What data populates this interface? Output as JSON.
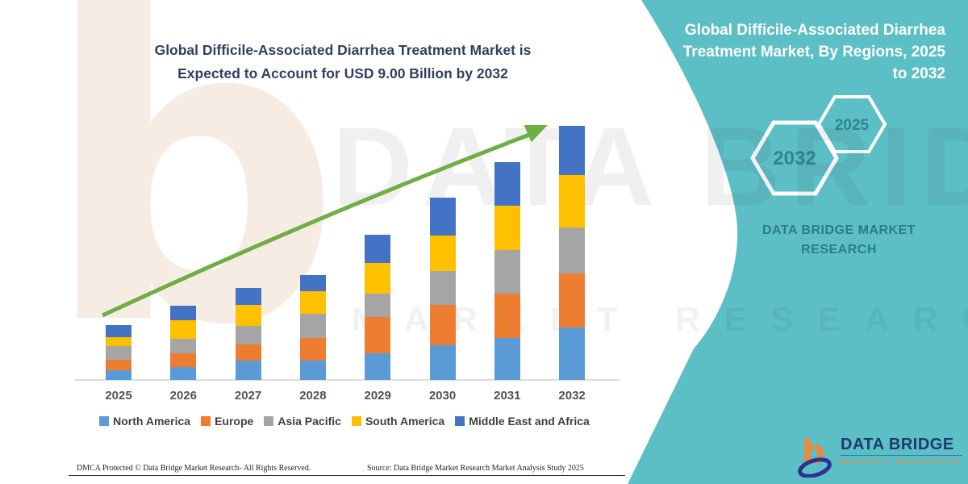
{
  "header": {
    "title_line1": "Global Difficile-Associated Diarrhea Treatment Market is",
    "title_line2": "Expected to Account for USD 9.00 Billion by 2032"
  },
  "chart_data": {
    "type": "bar",
    "stacked": true,
    "unit": "USD Billion",
    "title": "Global Difficile-Associated Diarrhea Treatment Market is Expected to Account for USD 9.00 Billion by 2032",
    "categories": [
      "2025",
      "2026",
      "2027",
      "2028",
      "2029",
      "2030",
      "2031",
      "2032"
    ],
    "series": [
      {
        "name": "North America",
        "color": "#5B9BD5",
        "values": [
          0.35,
          0.46,
          0.69,
          0.69,
          0.93,
          1.24,
          1.48,
          1.85
        ]
      },
      {
        "name": "Europe",
        "color": "#ED7D31",
        "values": [
          0.35,
          0.49,
          0.58,
          0.81,
          1.3,
          1.42,
          1.59,
          1.91
        ]
      },
      {
        "name": "Asia Pacific",
        "color": "#A5A5A5",
        "values": [
          0.49,
          0.52,
          0.64,
          0.84,
          0.84,
          1.19,
          1.53,
          1.65
        ]
      },
      {
        "name": "South America",
        "color": "#FFC000",
        "values": [
          0.32,
          0.64,
          0.75,
          0.81,
          1.07,
          1.27,
          1.56,
          1.85
        ]
      },
      {
        "name": "Middle East and Africa",
        "color": "#4472C4",
        "values": [
          0.43,
          0.52,
          0.61,
          0.55,
          1.01,
          1.33,
          1.56,
          1.74
        ]
      }
    ],
    "totals": [
      1.94,
      2.63,
      3.27,
      3.7,
      5.15,
      6.45,
      7.72,
      9.0
    ],
    "ylim": [
      0,
      9.5
    ],
    "gridlines": false,
    "legend_position": "bottom",
    "trend_arrow": {
      "present": true,
      "color": "#6FAE44"
    }
  },
  "side_panel": {
    "background_color": "#5BBFC5",
    "title_lines": [
      "Global Difficile-Associated Diarrhea",
      "Treatment Market, By Regions, 2025",
      "to 2032"
    ],
    "hexagon_large_label": "2032",
    "hexagon_small_label": "2025",
    "hex_text_color": "#2E8694",
    "brand_line1": "DATA BRIDGE MARKET",
    "brand_line2": "RESEARCH"
  },
  "watermarks": {
    "letter": "b",
    "line1": "DATA BRIDGE",
    "line2": "MARKET RESEARCH"
  },
  "logo": {
    "name": "DATA BRIDGE",
    "tagline": "MARKET RESEARCH"
  },
  "footer": {
    "left": "DMCA Protected © Data Bridge Market Research-  All Rights Reserved.",
    "right": "Source: Data Bridge Market Research  Market Analysis Study 2025"
  }
}
